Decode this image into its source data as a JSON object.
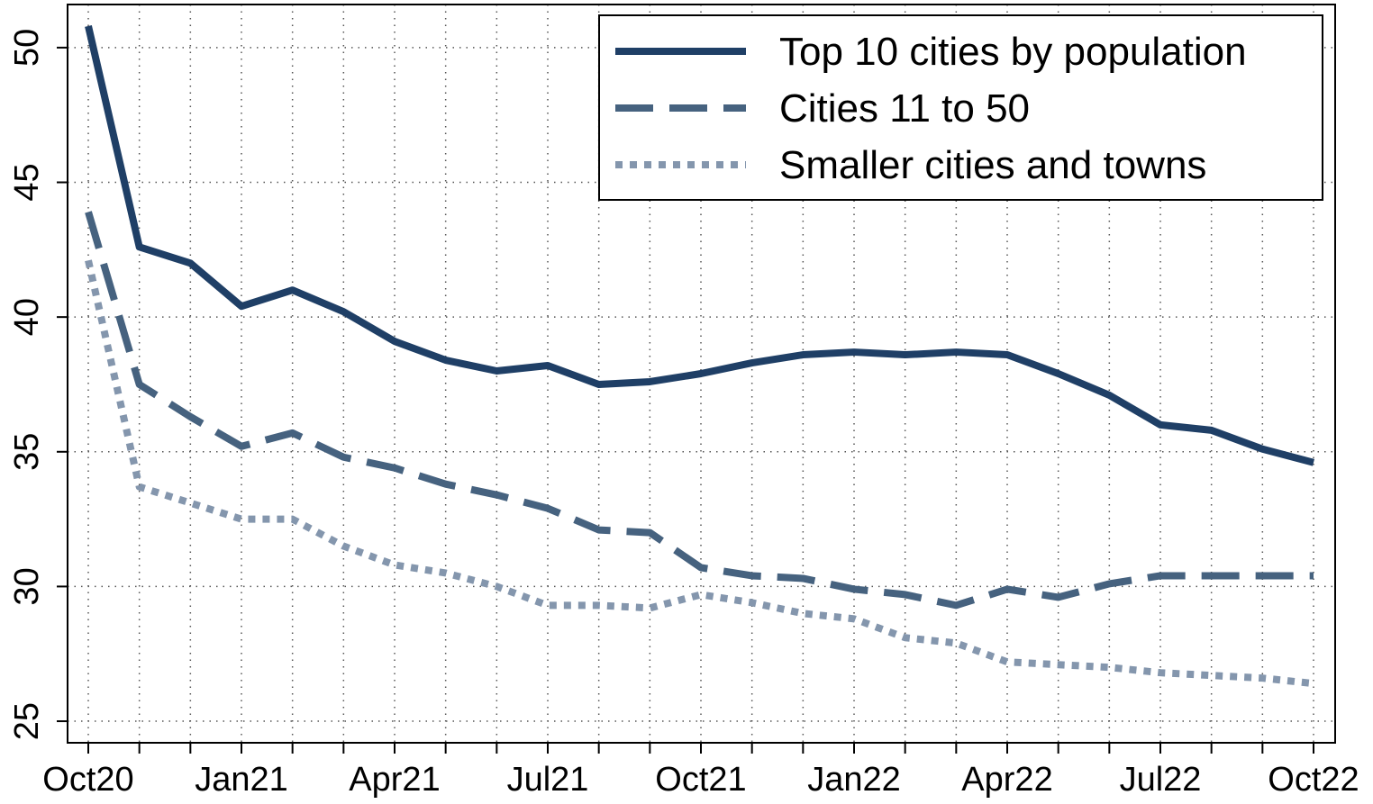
{
  "chart_data": {
    "type": "line",
    "categories": [
      "Oct20",
      null,
      null,
      "Jan21",
      null,
      null,
      "Apr21",
      null,
      null,
      "Jul21",
      null,
      null,
      "Oct21",
      null,
      null,
      "Jan22",
      null,
      null,
      "Apr22",
      null,
      null,
      "Jul22",
      null,
      null,
      "Oct22"
    ],
    "series": [
      {
        "name": "Top 10 cities by population",
        "color": "#1f3f66",
        "dash": "solid",
        "values": [
          50.8,
          42.6,
          42.0,
          40.4,
          41.0,
          40.2,
          39.1,
          38.4,
          38.0,
          38.2,
          37.5,
          37.6,
          37.9,
          38.3,
          38.6,
          38.7,
          38.6,
          38.7,
          38.6,
          37.9,
          37.1,
          36.0,
          35.8,
          35.1,
          34.6
        ]
      },
      {
        "name": "Cities 11 to 50",
        "color": "#46627f",
        "dash": "dashed",
        "values": [
          43.9,
          37.5,
          36.3,
          35.2,
          35.7,
          34.8,
          34.4,
          33.8,
          33.4,
          32.9,
          32.1,
          32.0,
          30.7,
          30.4,
          30.3,
          29.9,
          29.7,
          29.3,
          29.9,
          29.6,
          30.1,
          30.4,
          30.4,
          30.4,
          30.4
        ]
      },
      {
        "name": "Smaller cities and towns",
        "color": "#8496ad",
        "dash": "dotted",
        "values": [
          42.1,
          33.7,
          33.1,
          32.5,
          32.5,
          31.5,
          30.8,
          30.5,
          30.0,
          29.3,
          29.3,
          29.2,
          29.7,
          29.4,
          29.0,
          28.8,
          28.1,
          27.9,
          27.2,
          27.1,
          27.0,
          26.8,
          26.7,
          26.6,
          26.4
        ]
      }
    ],
    "ylim": [
      24.2,
      51.6
    ],
    "yticks": [
      25,
      30,
      35,
      40,
      45,
      50
    ],
    "grid": true,
    "legend": "upper right"
  }
}
